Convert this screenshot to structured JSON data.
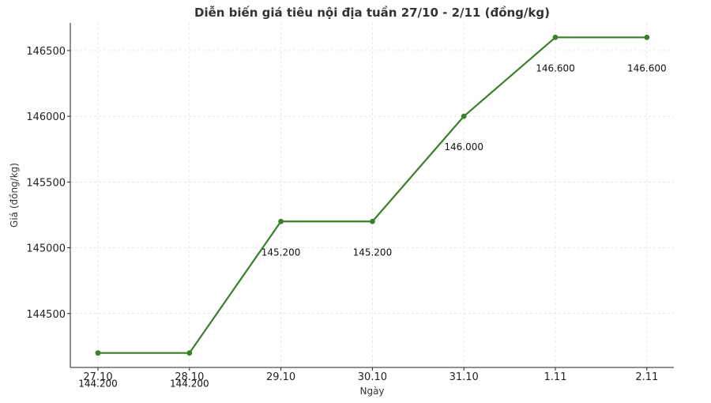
{
  "chart_data": {
    "type": "line",
    "title": "Diễn biến giá tiêu nội địa tuần 27/10 - 2/11 (đồng/kg)",
    "xlabel": "Ngày",
    "ylabel": "Giá (đồng/kg)",
    "categories": [
      "27.10",
      "28.10",
      "29.10",
      "30.10",
      "31.10",
      "1.11",
      "2.11"
    ],
    "series": [
      {
        "values": [
          144200,
          144200,
          145200,
          145200,
          146000,
          146600,
          146600
        ],
        "data_labels": [
          "144.200",
          "144.200",
          "145.200",
          "145.200",
          "146.000",
          "146.600",
          "146.600"
        ],
        "color": "#3a7f2a"
      }
    ],
    "yticks": [
      144500,
      145000,
      145500,
      146000,
      146500
    ],
    "ylim": [
      144090,
      146710
    ],
    "grid": true
  }
}
